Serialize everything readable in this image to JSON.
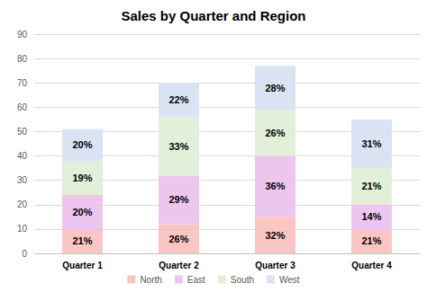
{
  "chart_data": {
    "type": "bar",
    "title": "Sales by Quarter and Region",
    "categories": [
      "Quarter 1",
      "Quarter 2",
      "Quarter 3",
      "Quarter 4"
    ],
    "series": [
      {
        "name": "North",
        "color": "#f9c6c4",
        "values": [
          10,
          12,
          15,
          10
        ],
        "value_labels": [
          "21%",
          "26%",
          "32%",
          "21%"
        ]
      },
      {
        "name": "East",
        "color": "#ecc6ef",
        "values": [
          14,
          20,
          25,
          10
        ],
        "value_labels": [
          "20%",
          "29%",
          "36%",
          "14%"
        ]
      },
      {
        "name": "South",
        "color": "#e2efd9",
        "values": [
          14,
          24,
          19,
          15
        ],
        "value_labels": [
          "19%",
          "33%",
          "26%",
          "21%"
        ]
      },
      {
        "name": "West",
        "color": "#dae3f3",
        "values": [
          13,
          14,
          18,
          20
        ],
        "value_labels": [
          "20%",
          "22%",
          "28%",
          "31%"
        ]
      }
    ],
    "ylim": [
      0,
      90
    ],
    "yticks": [
      0,
      10,
      20,
      30,
      40,
      50,
      60,
      70,
      80,
      90
    ],
    "stacked": true,
    "data_labels": true,
    "grid": true,
    "legend": "bottom"
  }
}
